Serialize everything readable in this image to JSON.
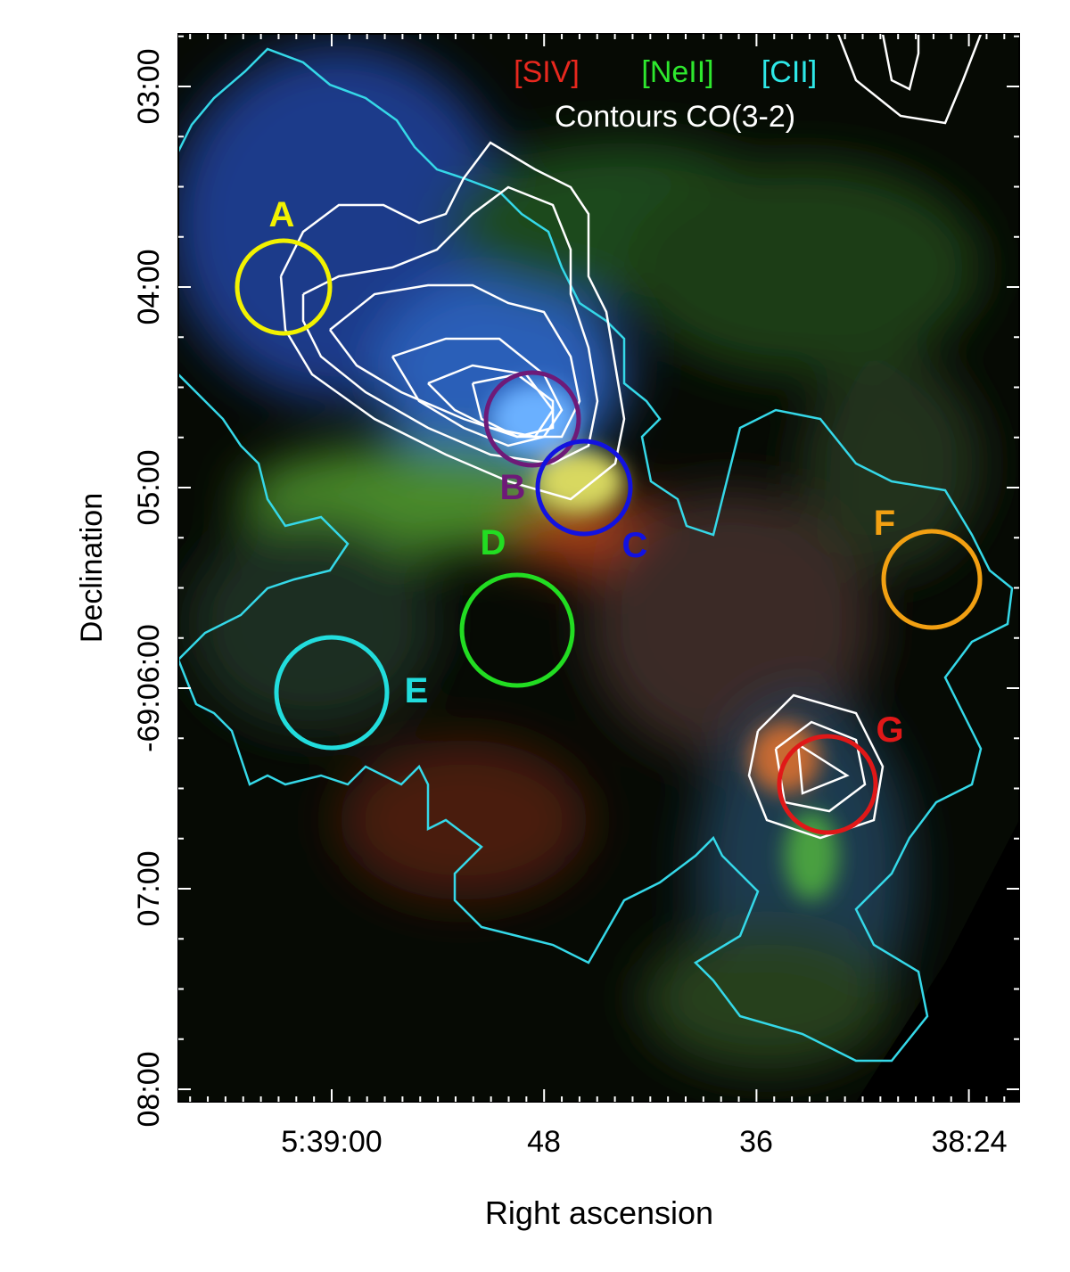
{
  "x_axis": {
    "label": "Right ascension",
    "ticks": [
      "5:39:00",
      "48",
      "36",
      "38:24"
    ]
  },
  "y_axis": {
    "label": "Declination",
    "ticks": [
      "03:00",
      "04:00",
      "05:00",
      "-69:06:00",
      "07:00",
      "08:00"
    ]
  },
  "legend": [
    {
      "text": "[SIV]",
      "color": "#e8281e"
    },
    {
      "text": "[NeII]",
      "color": "#2ee82e"
    },
    {
      "text": "[CII]",
      "color": "#2ee8e8"
    },
    {
      "text": "Contours CO(3-2)",
      "color": "#ffffff"
    }
  ],
  "regions": [
    {
      "label": "A",
      "color": "#f2f200"
    },
    {
      "label": "B",
      "color": "#6e1a78"
    },
    {
      "label": "C",
      "color": "#1212e0"
    },
    {
      "label": "D",
      "color": "#22dd22"
    },
    {
      "label": "E",
      "color": "#22dddd"
    },
    {
      "label": "F",
      "color": "#f2a012"
    },
    {
      "label": "G",
      "color": "#e01818"
    }
  ]
}
